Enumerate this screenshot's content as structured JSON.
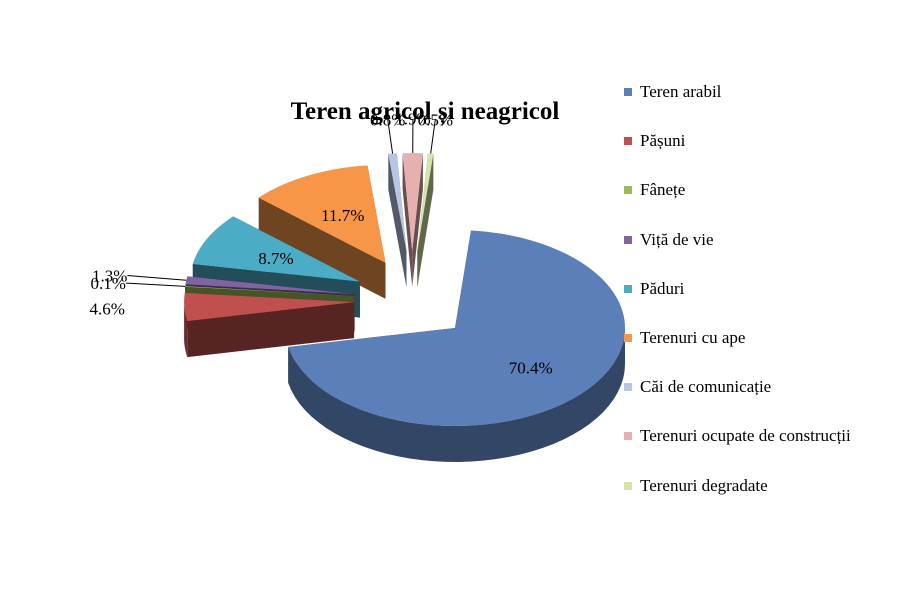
{
  "chart_data": {
    "type": "pie",
    "title": "Teren agricol și neagricol",
    "categories": [
      "Teren arabil",
      "Pășuni",
      "Fânețe",
      "Viță de vie",
      "Păduri",
      "Terenuri cu ape",
      "Căi de comunicație",
      "Terenuri ocupate de construcții",
      "Terenuri degradate"
    ],
    "values": [
      70.4,
      4.6,
      0.1,
      1.3,
      8.7,
      11.7,
      0.8,
      1.9,
      0.5
    ],
    "data_labels": [
      "70.4%",
      "4.6%",
      "0.1%",
      "1.3%",
      "8.7%",
      "11.7%",
      "0.8%",
      "1.9%",
      "0.5%"
    ],
    "colors": [
      "#5b7fb9",
      "#c0504d",
      "#9bbb59",
      "#8064a2",
      "#4bacc6",
      "#f79646",
      "#b8c6e6",
      "#e6b0b0",
      "#d7e4a8"
    ],
    "legend_position": "right",
    "style": "exploded 3D pie"
  }
}
